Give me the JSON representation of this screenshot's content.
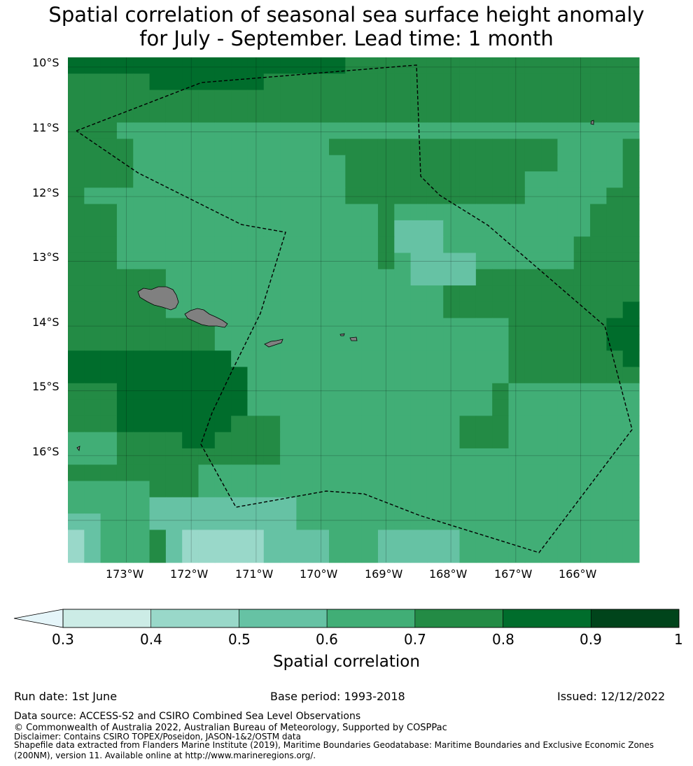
{
  "title_line1": "Spatial correlation of seasonal sea surface height anomaly",
  "title_line2": "for July - September. Lead time: 1 month",
  "map": {
    "lat_labels": [
      "10°S",
      "11°S",
      "12°S",
      "13°S",
      "14°S",
      "15°S",
      "16°S"
    ],
    "lon_labels": [
      "173°W",
      "172°W",
      "171°W",
      "170°W",
      "169°W",
      "168°W",
      "167°W",
      "166°W"
    ],
    "extent": {
      "lon_min": -173.9,
      "lon_max": -165.1,
      "lat_min": -17.65,
      "lat_max": -9.85
    },
    "land_color": "#808080",
    "boundary_style": "dashed black"
  },
  "colorbar": {
    "label": "Spatial correlation",
    "ticks": [
      "0.3",
      "0.4",
      "0.5",
      "0.6",
      "0.7",
      "0.8",
      "0.9",
      "1"
    ],
    "bins": [
      {
        "from": 0.3,
        "to": 0.4,
        "color": "#ccece6"
      },
      {
        "from": 0.4,
        "to": 0.5,
        "color": "#99d8c9"
      },
      {
        "from": 0.5,
        "to": 0.6,
        "color": "#66c2a4"
      },
      {
        "from": 0.6,
        "to": 0.7,
        "color": "#41ae76"
      },
      {
        "from": 0.7,
        "to": 0.8,
        "color": "#238b45"
      },
      {
        "from": 0.8,
        "to": 0.9,
        "color": "#006d2c"
      },
      {
        "from": 0.9,
        "to": 1.0,
        "color": "#00441b"
      }
    ],
    "extend_below_color": "#e5f5f9"
  },
  "footer": {
    "run_date": "Run date: 1st June",
    "base_period": "Base period: 1993-2018",
    "issued": "Issued: 12/12/2022",
    "data_source": "Data source: ACCESS-S2 and CSIRO Combined Sea Level Observations",
    "copyright": "© Commonwealth of Australia 2022, Australian Bureau of Meteorology, Supported by COSPPac",
    "disclaimer": "Disclaimer: Contains CSIRO TOPEX/Poseidon, JASON-1&2/OSTM data",
    "shapefile_1": "Shapefile data extracted from Flanders Marine Institute (2019), Maritime Boundaries Geodatabase: Maritime Boundaries and Exclusive Economic Zones",
    "shapefile_2": "(200NM), version 11. Available online at http://www.marineregions.org/."
  }
}
